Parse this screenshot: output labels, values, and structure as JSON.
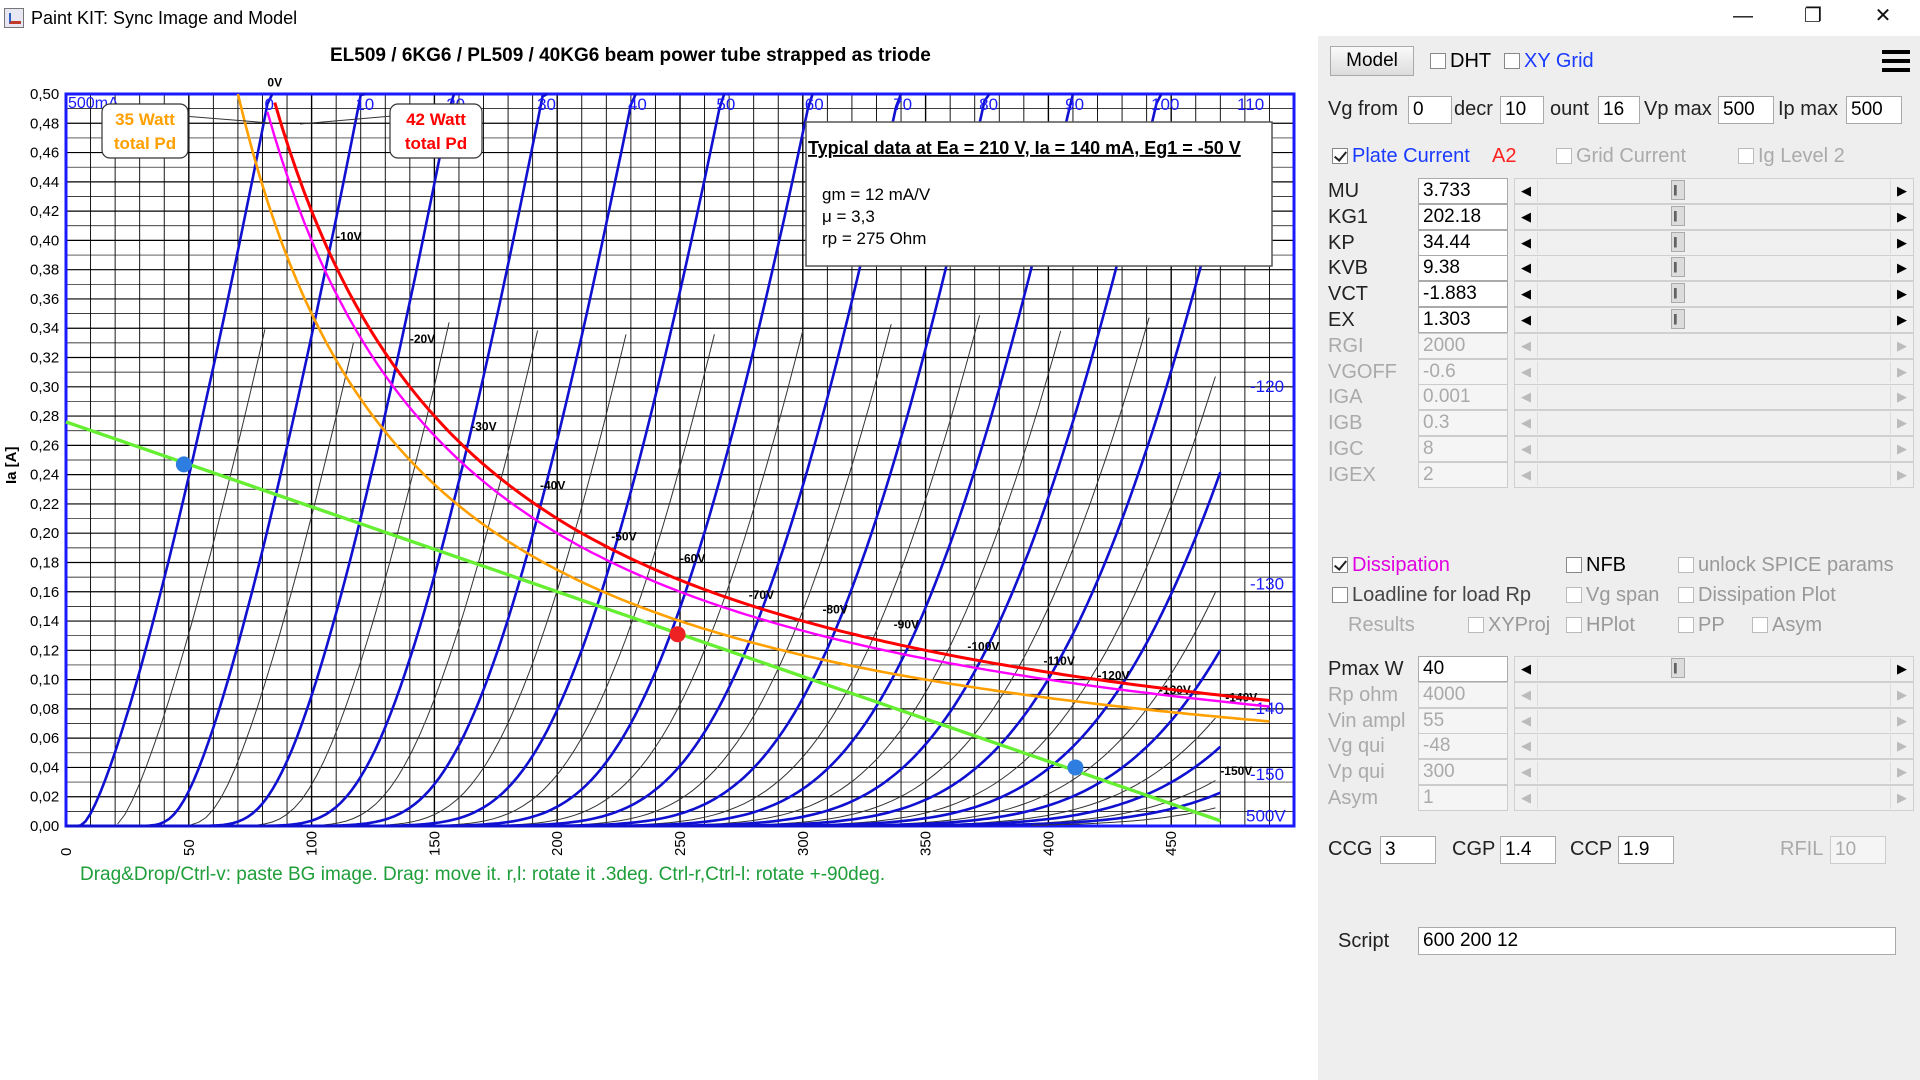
{
  "window": {
    "title": "Paint KIT: Sync Image and Model",
    "min_glyph": "—",
    "max_glyph": "❐",
    "close_glyph": "✕"
  },
  "plot": {
    "title": "EL509 / 6KG6 / PL509 / 40KG6 beam power tube strapped as triode",
    "corner_label": "500mA",
    "y_title": "Ia [A]",
    "y_ticks": [
      "0,50",
      "0,48",
      "0,46",
      "0,44",
      "0,42",
      "0,40",
      "0,38",
      "0,36",
      "0,34",
      "0,32",
      "0,30",
      "0,28",
      "0,26",
      "0,24",
      "0,22",
      "0,20",
      "0,18",
      "0,16",
      "0,14",
      "0,12",
      "0,10",
      "0,08",
      "0,06",
      "0,04",
      "0,02",
      "0,00"
    ],
    "x_ticks": [
      "0",
      "50",
      "100",
      "150",
      "200",
      "250",
      "300",
      "350",
      "400",
      "450"
    ],
    "top_labels": [
      "0",
      "10",
      "20",
      "30",
      "40",
      "50",
      "60",
      "70",
      "80",
      "90",
      "100",
      "110"
    ],
    "right_labels": [
      "-120",
      "-130",
      "-140",
      "-150",
      "500V"
    ],
    "bg_curve_labels": [
      "0V",
      "-10V",
      "-20V",
      "-30V",
      "-40V",
      "-50V",
      "-60V",
      "-70V",
      "-80V",
      "-90V",
      "-100V",
      "-110V",
      "-120V",
      "-130V",
      "-140V",
      "-150V"
    ],
    "label_35w": [
      "35 Watt",
      "total Pd"
    ],
    "label_42w": [
      "42 Watt",
      "total Pd"
    ],
    "info_title": "Typical data at Ea = 210 V, Ia = 140 mA, Eg1 = -50 V",
    "info_lines": [
      "gm = 12 mA/V",
      "μ    = 3,3",
      "rp   = 275 Ohm"
    ],
    "hint": "Drag&Drop/Ctrl-v: paste BG image. Drag: move it. r,l: rotate it .3deg. Ctrl-r,Ctrl-l: rotate +-90deg.",
    "colors": {
      "grid": "#000000",
      "frame": "#1a1aff",
      "model_curve": "#1010d0",
      "pd_35": "#ffa000",
      "pd_42": "#ff0000",
      "pd_magenta": "#ff00ff",
      "loadline": "#66ee33",
      "operating_point": "#ee2222",
      "loadline_ends": "#2e7de0"
    }
  },
  "panel": {
    "model_button": "Model",
    "dht_label": "DHT",
    "xygrid_label": "XY Grid",
    "vg_from_label": "Vg from",
    "vg_from_value": "0",
    "decr_label": "decr",
    "decr_value": "10",
    "count_label": "ount",
    "count_value": "16",
    "vp_max_label": "Vp max",
    "vp_max_value": "500",
    "ip_max_label": "Ip max",
    "ip_max_value": "500",
    "plate_current_label": "Plate Current",
    "a2_label": "A2",
    "grid_current_label": "Grid Current",
    "ig_level_label": "Ig Level 2",
    "params": [
      {
        "name": "MU",
        "value": "3.733",
        "enabled": true
      },
      {
        "name": "KG1",
        "value": "202.18",
        "enabled": true
      },
      {
        "name": "KP",
        "value": "34.44",
        "enabled": true
      },
      {
        "name": "KVB",
        "value": "9.38",
        "enabled": true
      },
      {
        "name": "VCT",
        "value": "-1.883",
        "enabled": true
      },
      {
        "name": "EX",
        "value": "1.303",
        "enabled": true
      },
      {
        "name": "RGI",
        "value": "2000",
        "enabled": false
      },
      {
        "name": "VGOFF",
        "value": "-0.6",
        "enabled": false
      },
      {
        "name": "IGA",
        "value": "0.001",
        "enabled": false
      },
      {
        "name": "IGB",
        "value": "0.3",
        "enabled": false
      },
      {
        "name": "IGC",
        "value": "8",
        "enabled": false
      },
      {
        "name": "IGEX",
        "value": "2",
        "enabled": false
      }
    ],
    "dissipation_label": "Dissipation",
    "nfb_label": "NFB",
    "unlock_label": "unlock SPICE params",
    "loadline_label": "Loadline for load Rp",
    "vg_span_label": "Vg span",
    "dissipation_plot_label": "Dissipation Plot",
    "results_label": "Results",
    "xyproj_label": "XYProj",
    "hplot_label": "HPlot",
    "pp_label": "PP",
    "asym_cb_label": "Asym",
    "load_params": [
      {
        "name": "Pmax W",
        "value": "40",
        "enabled": true
      },
      {
        "name": "Rp ohm",
        "value": "4000",
        "enabled": false
      },
      {
        "name": "Vin ampl",
        "value": "55",
        "enabled": false
      },
      {
        "name": "Vg qui",
        "value": "-48",
        "enabled": false
      },
      {
        "name": "Vp qui",
        "value": "300",
        "enabled": false
      },
      {
        "name": "Asym",
        "value": "1",
        "enabled": false
      }
    ],
    "ccg_label": "CCG",
    "ccg_value": "3",
    "cgp_label": "CGP",
    "cgp_value": "1.4",
    "ccp_label": "CCP",
    "ccp_value": "1.9",
    "rfil_label": "RFIL",
    "rfil_value": "10",
    "script_label": "Script",
    "script_value": "600 200 12"
  }
}
